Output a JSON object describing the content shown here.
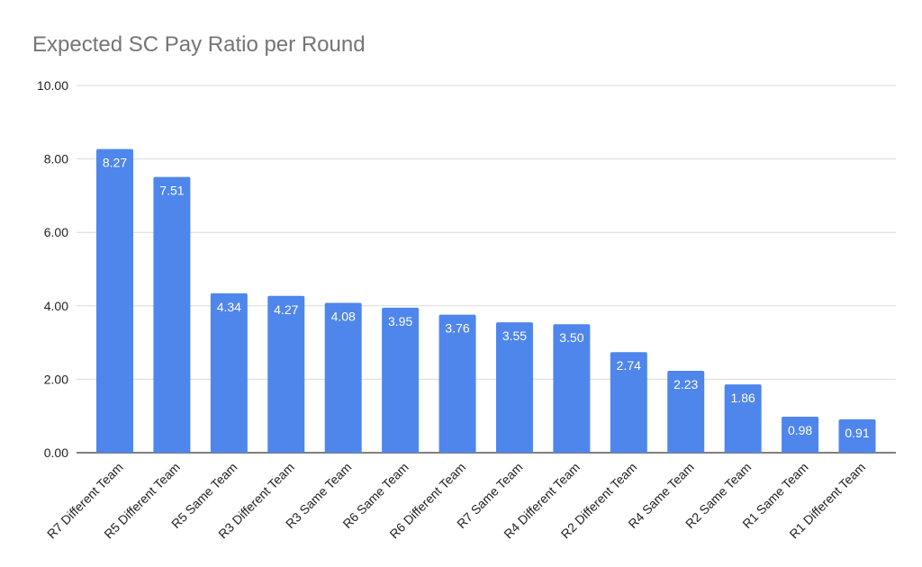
{
  "chart_data": {
    "type": "bar",
    "title": "Expected SC Pay Ratio per Round",
    "xlabel": "",
    "ylabel": "",
    "ylim": [
      0,
      10
    ],
    "yticks": [
      0,
      2,
      4,
      6,
      8,
      10
    ],
    "ytick_labels": [
      "0.00",
      "2.00",
      "4.00",
      "6.00",
      "8.00",
      "10.00"
    ],
    "grid": true,
    "bar_color": "#4f86ec",
    "categories": [
      "R7 Different Team",
      "R5 Different Team",
      "R5 Same Team",
      "R3 Different Team",
      "R3 Same Team",
      "R6 Same Team",
      "R6 Different Team",
      "R7 Same Team",
      "R4 Different Team",
      "R2 Different Team",
      "R4 Same Team",
      "R2 Same Team",
      "R1 Same Team",
      "R1 Different Team"
    ],
    "values": [
      8.27,
      7.51,
      4.34,
      4.27,
      4.08,
      3.95,
      3.76,
      3.55,
      3.5,
      2.74,
      2.23,
      1.86,
      0.98,
      0.91
    ],
    "value_labels": [
      "8.27",
      "7.51",
      "4.34",
      "4.27",
      "4.08",
      "3.95",
      "3.76",
      "3.55",
      "3.50",
      "2.74",
      "2.23",
      "1.86",
      "0.98",
      "0.91"
    ]
  }
}
